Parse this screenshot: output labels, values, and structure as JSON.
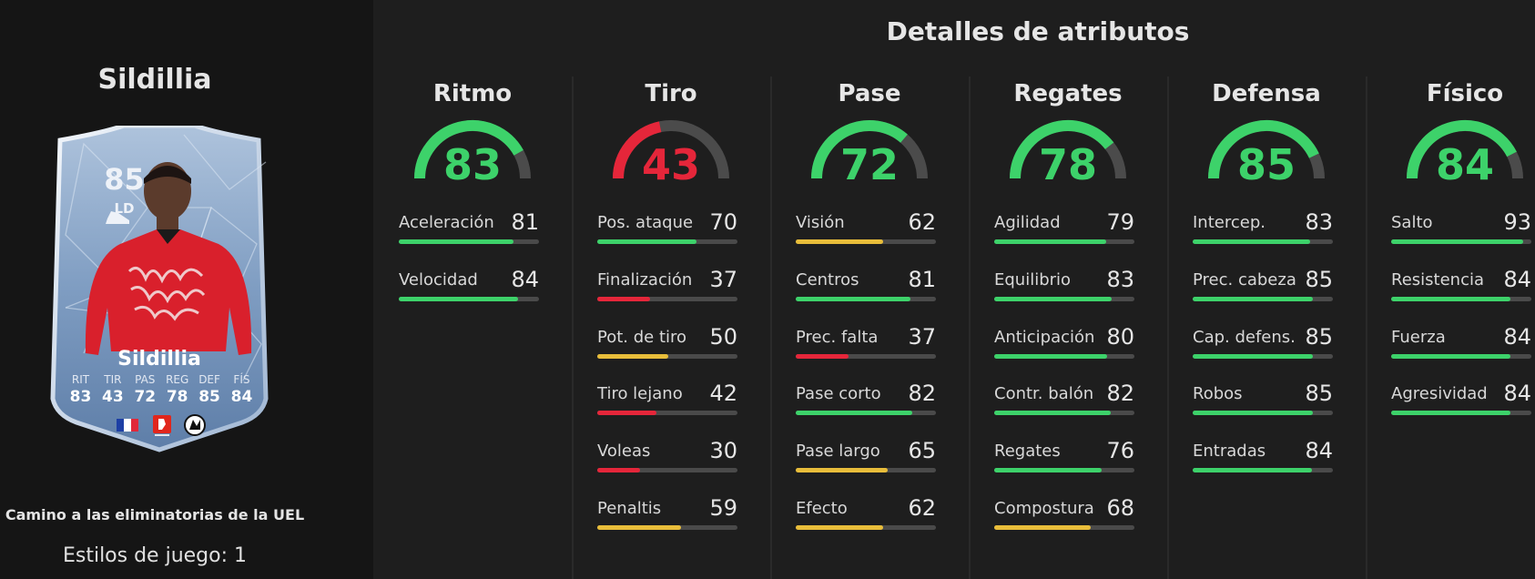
{
  "panel_title": "Detalles de atributos",
  "player": {
    "name": "Sildillia",
    "promo": "Camino a las eliminatorias de la UEL",
    "playstyles": "Estilos de juego: 1",
    "card": {
      "rating": "85",
      "position": "LD",
      "name": "Sildillia",
      "stats": [
        {
          "label": "RIT",
          "value": "83"
        },
        {
          "label": "TIR",
          "value": "43"
        },
        {
          "label": "PAS",
          "value": "72"
        },
        {
          "label": "REG",
          "value": "78"
        },
        {
          "label": "DEF",
          "value": "85"
        },
        {
          "label": "FÍS",
          "value": "84"
        }
      ]
    }
  },
  "colors": {
    "green": "#3dd26a",
    "red": "#e5263a",
    "yellow": "#e8bd3a",
    "track": "#4a4a4a"
  },
  "categories": [
    {
      "title": "Ritmo",
      "value": "83",
      "attrs": [
        {
          "label": "Aceleración",
          "value": "81"
        },
        {
          "label": "Velocidad",
          "value": "84"
        }
      ]
    },
    {
      "title": "Tiro",
      "value": "43",
      "attrs": [
        {
          "label": "Pos. ataque",
          "value": "70"
        },
        {
          "label": "Finalización",
          "value": "37"
        },
        {
          "label": "Pot. de tiro",
          "value": "50"
        },
        {
          "label": "Tiro lejano",
          "value": "42"
        },
        {
          "label": "Voleas",
          "value": "30"
        },
        {
          "label": "Penaltis",
          "value": "59"
        }
      ]
    },
    {
      "title": "Pase",
      "value": "72",
      "attrs": [
        {
          "label": "Visión",
          "value": "62"
        },
        {
          "label": "Centros",
          "value": "81"
        },
        {
          "label": "Prec. falta",
          "value": "37"
        },
        {
          "label": "Pase corto",
          "value": "82"
        },
        {
          "label": "Pase largo",
          "value": "65"
        },
        {
          "label": "Efecto",
          "value": "62"
        }
      ]
    },
    {
      "title": "Regates",
      "value": "78",
      "attrs": [
        {
          "label": "Agilidad",
          "value": "79"
        },
        {
          "label": "Equilibrio",
          "value": "83"
        },
        {
          "label": "Anticipación",
          "value": "80"
        },
        {
          "label": "Contr. balón",
          "value": "82"
        },
        {
          "label": "Regates",
          "value": "76"
        },
        {
          "label": "Compostura",
          "value": "68"
        }
      ]
    },
    {
      "title": "Defensa",
      "value": "85",
      "attrs": [
        {
          "label": "Intercep.",
          "value": "83"
        },
        {
          "label": "Prec. cabeza",
          "value": "85"
        },
        {
          "label": "Cap. defens.",
          "value": "85"
        },
        {
          "label": "Robos",
          "value": "85"
        },
        {
          "label": "Entradas",
          "value": "84"
        }
      ]
    },
    {
      "title": "Físico",
      "value": "84",
      "attrs": [
        {
          "label": "Salto",
          "value": "93"
        },
        {
          "label": "Resistencia",
          "value": "84"
        },
        {
          "label": "Fuerza",
          "value": "84"
        },
        {
          "label": "Agresividad",
          "value": "84"
        }
      ]
    }
  ]
}
